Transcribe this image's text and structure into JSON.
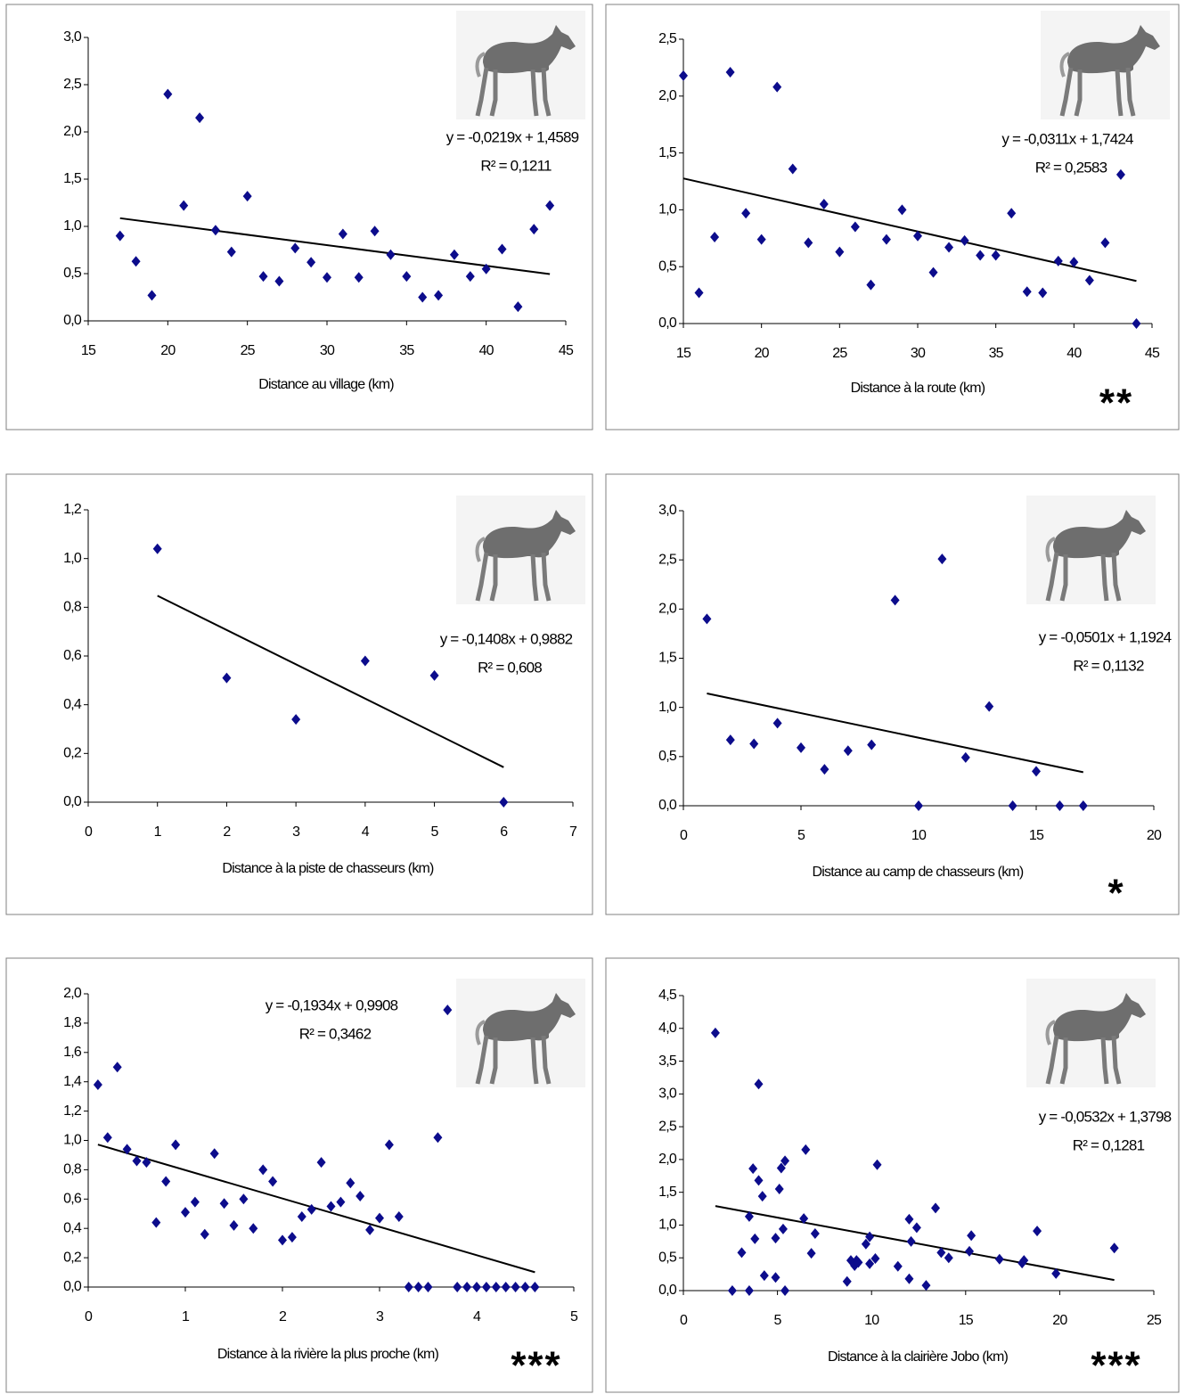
{
  "chart_data": [
    {
      "type": "scatter",
      "x_label": "Distance au village (km)",
      "color": "#0c0c8c",
      "x": [
        17,
        18,
        19,
        20,
        21,
        22,
        23,
        24,
        25,
        26,
        27,
        28,
        29,
        30,
        31,
        32,
        33,
        34,
        35,
        36,
        37,
        38,
        39,
        40,
        41,
        42,
        43,
        44
      ],
      "values": [
        0.9,
        0.63,
        0.27,
        2.4,
        1.22,
        2.15,
        0.96,
        0.73,
        1.32,
        0.47,
        0.42,
        0.77,
        0.62,
        0.46,
        0.92,
        0.46,
        0.95,
        0.7,
        0.47,
        0.25,
        0.27,
        0.7,
        0.47,
        0.55,
        0.76,
        0.15,
        0.97,
        1.22
      ],
      "xlim": [
        15,
        45
      ],
      "xticks": [
        15,
        20,
        25,
        30,
        35,
        40,
        45
      ],
      "ylim": [
        0,
        3
      ],
      "yticks": [
        {
          "value": 0,
          "label": "0,0"
        },
        {
          "value": 0.5,
          "label": "0,5"
        },
        {
          "value": 1,
          "label": "1,0"
        },
        {
          "value": 1.5,
          "label": "1,5"
        },
        {
          "value": 2,
          "label": "2,0"
        },
        {
          "value": 2.5,
          "label": "2,5"
        },
        {
          "value": 3,
          "label": "3,0"
        }
      ],
      "trendline": {
        "slope": -0.0219,
        "intercept": 1.4589,
        "equation": "y = -0,0219x + 1,4589",
        "r2": "R² = 0,1211"
      }
    },
    {
      "type": "scatter",
      "x_label": "Distance à la route (km)",
      "color": "#0c0c8c",
      "significance": "**",
      "x": [
        15,
        16,
        17,
        18,
        19,
        20,
        21,
        22,
        23,
        24,
        25,
        26,
        27,
        28,
        29,
        30,
        31,
        32,
        33,
        34,
        35,
        36,
        37,
        38,
        39,
        40,
        41,
        42,
        43,
        44
      ],
      "values": [
        2.18,
        0.27,
        0.76,
        2.21,
        0.97,
        0.74,
        2.08,
        1.36,
        0.71,
        1.05,
        0.63,
        0.85,
        0.34,
        0.74,
        1.0,
        0.77,
        0.45,
        0.67,
        0.73,
        0.6,
        0.6,
        0.97,
        0.28,
        0.27,
        0.55,
        0.54,
        0.38,
        0.71,
        1.31,
        0.0
      ],
      "xlim": [
        15,
        45
      ],
      "xticks": [
        15,
        20,
        25,
        30,
        35,
        40,
        45
      ],
      "ylim": [
        0,
        2.5
      ],
      "yticks": [
        {
          "value": 0,
          "label": "0,0"
        },
        {
          "value": 0.5,
          "label": "0,5"
        },
        {
          "value": 1,
          "label": "1,0"
        },
        {
          "value": 1.5,
          "label": "1,5"
        },
        {
          "value": 2,
          "label": "2,0"
        },
        {
          "value": 2.5,
          "label": "2,5"
        }
      ],
      "trendline": {
        "slope": -0.0311,
        "intercept": 1.7424,
        "equation": "y = -0,0311x + 1,7424",
        "r2": "R² = 0,2583"
      }
    },
    {
      "type": "scatter",
      "x_label": "Distance à la piste de chasseurs (km)",
      "color": "#0c0c8c",
      "x": [
        1,
        2,
        3,
        4,
        5,
        6
      ],
      "values": [
        1.04,
        0.51,
        0.34,
        0.58,
        0.52,
        0.0
      ],
      "xlim": [
        0,
        7
      ],
      "xticks": [
        0,
        1,
        2,
        3,
        4,
        5,
        6,
        7
      ],
      "ylim": [
        0,
        1.2
      ],
      "yticks": [
        {
          "value": 0,
          "label": "0,0"
        },
        {
          "value": 0.2,
          "label": "0,2"
        },
        {
          "value": 0.4,
          "label": "0,4"
        },
        {
          "value": 0.6,
          "label": "0,6"
        },
        {
          "value": 0.8,
          "label": "0,8"
        },
        {
          "value": 1,
          "label": "1,0"
        },
        {
          "value": 1.2,
          "label": "1,2"
        }
      ],
      "trendline": {
        "slope": -0.1408,
        "intercept": 0.9882,
        "equation": "y = -0,1408x + 0,9882",
        "r2": "R² = 0,608"
      }
    },
    {
      "type": "scatter",
      "x_label": "Distance au camp de chasseurs (km)",
      "color": "#0c0c8c",
      "significance": "*",
      "x": [
        1,
        2,
        3,
        4,
        5,
        6,
        7,
        8,
        9,
        10,
        11,
        12,
        13,
        14,
        15,
        16,
        17
      ],
      "values": [
        1.9,
        0.67,
        0.63,
        0.84,
        0.59,
        0.37,
        0.56,
        0.62,
        2.09,
        0.0,
        2.51,
        0.49,
        1.01,
        0.0,
        0.35,
        0.0,
        0.0
      ],
      "xlim": [
        0,
        20
      ],
      "xticks": [
        0,
        5,
        10,
        15,
        20
      ],
      "ylim": [
        0,
        3
      ],
      "yticks": [
        {
          "value": 0,
          "label": "0,0"
        },
        {
          "value": 0.5,
          "label": "0,5"
        },
        {
          "value": 1,
          "label": "1,0"
        },
        {
          "value": 1.5,
          "label": "1,5"
        },
        {
          "value": 2,
          "label": "2,0"
        },
        {
          "value": 2.5,
          "label": "2,5"
        },
        {
          "value": 3,
          "label": "3,0"
        }
      ],
      "trendline": {
        "slope": -0.0501,
        "intercept": 1.1924,
        "equation": "y = -0,0501x + 1,1924",
        "r2": "R² = 0,1132"
      }
    },
    {
      "type": "scatter",
      "x_label": "Distance à la rivière la plus proche (km)",
      "color": "#0c0c8c",
      "significance": "***",
      "x": [
        0.1,
        0.2,
        0.3,
        0.4,
        0.5,
        0.6,
        0.7,
        0.8,
        0.9,
        1.0,
        1.1,
        1.2,
        1.3,
        1.4,
        1.5,
        1.6,
        1.7,
        1.8,
        1.9,
        2.0,
        2.1,
        2.2,
        2.3,
        2.4,
        2.5,
        2.6,
        2.7,
        2.8,
        2.9,
        3.0,
        3.1,
        3.2,
        3.3,
        3.4,
        3.5,
        3.6,
        3.7,
        3.8,
        3.9,
        4.0,
        4.1,
        4.2,
        4.3,
        4.4,
        4.5,
        4.6
      ],
      "values": [
        1.38,
        1.02,
        1.5,
        0.94,
        0.86,
        0.85,
        0.44,
        0.72,
        0.97,
        0.51,
        0.58,
        0.36,
        0.91,
        0.57,
        0.42,
        0.6,
        0.4,
        0.8,
        0.72,
        0.32,
        0.34,
        0.48,
        0.53,
        0.85,
        0.55,
        0.58,
        0.71,
        0.62,
        0.39,
        0.47,
        0.97,
        0.48,
        0,
        0,
        0,
        1.02,
        1.89,
        0,
        0,
        0,
        0,
        0,
        0,
        0,
        0,
        0
      ],
      "xlim": [
        0,
        5
      ],
      "xticks": [
        0,
        1,
        2,
        3,
        4,
        5
      ],
      "ylim": [
        0,
        2
      ],
      "yticks": [
        {
          "value": 0,
          "label": "0,0"
        },
        {
          "value": 0.2,
          "label": "0,2"
        },
        {
          "value": 0.4,
          "label": "0,4"
        },
        {
          "value": 0.6,
          "label": "0,6"
        },
        {
          "value": 0.8,
          "label": "0,8"
        },
        {
          "value": 1,
          "label": "1,0"
        },
        {
          "value": 1.2,
          "label": "1,2"
        },
        {
          "value": 1.4,
          "label": "1,4"
        },
        {
          "value": 1.6,
          "label": "1,6"
        },
        {
          "value": 1.8,
          "label": "1,8"
        },
        {
          "value": 2,
          "label": "2,0"
        }
      ],
      "trendline": {
        "slope": -0.1934,
        "intercept": 0.9908,
        "equation": "y = -0,1934x + 0,9908",
        "r2": "R² = 0,3462"
      }
    },
    {
      "type": "scatter",
      "x_label": "Distance à la clairière Jobo (km)",
      "color": "#0c0c8c",
      "significance": "***",
      "x": [
        1.7,
        2.6,
        3.1,
        3.5,
        3.5,
        3.7,
        3.8,
        4.0,
        4.0,
        4.2,
        4.3,
        4.9,
        4.9,
        5.1,
        5.2,
        5.3,
        5.4,
        5.4,
        6.4,
        6.5,
        6.8,
        7.0,
        8.7,
        8.9,
        9.1,
        9.2,
        9.3,
        9.7,
        9.9,
        9.9,
        10.2,
        10.3,
        11.4,
        12.0,
        12.0,
        12.1,
        12.4,
        12.9,
        13.4,
        13.7,
        14.1,
        15.3,
        15.2,
        16.8,
        18.0,
        18.1,
        18.8,
        19.8,
        22.9
      ],
      "values": [
        3.93,
        0,
        0.58,
        1.13,
        0,
        1.86,
        0.79,
        3.15,
        1.68,
        1.44,
        0.23,
        0.2,
        0.8,
        1.55,
        1.87,
        0.94,
        1.98,
        0,
        1.1,
        2.15,
        0.57,
        0.87,
        0.14,
        0.46,
        0.38,
        0.46,
        0.43,
        0.71,
        0.82,
        0.41,
        0.49,
        1.92,
        0.37,
        1.09,
        0.18,
        0.75,
        0.96,
        0.08,
        1.26,
        0.58,
        0.5,
        0.84,
        0.6,
        0.48,
        0.42,
        0.46,
        0.91,
        0.26,
        0.65
      ],
      "xlim": [
        0,
        25
      ],
      "xticks": [
        0,
        5,
        10,
        15,
        20,
        25
      ],
      "ylim": [
        0,
        4.5
      ],
      "yticks": [
        {
          "value": 0,
          "label": "0,0"
        },
        {
          "value": 0.5,
          "label": "0,5"
        },
        {
          "value": 1,
          "label": "1,0"
        },
        {
          "value": 1.5,
          "label": "1,5"
        },
        {
          "value": 2,
          "label": "2,0"
        },
        {
          "value": 2.5,
          "label": "2,5"
        },
        {
          "value": 3,
          "label": "3,0"
        },
        {
          "value": 3.5,
          "label": "3,5"
        },
        {
          "value": 4,
          "label": "4,0"
        },
        {
          "value": 4.5,
          "label": "4,5"
        }
      ],
      "trendline": {
        "slope": -0.0532,
        "intercept": 1.3798,
        "equation": "y = -0,0532x + 1,3798",
        "r2": "R² = 0,1281"
      }
    }
  ]
}
